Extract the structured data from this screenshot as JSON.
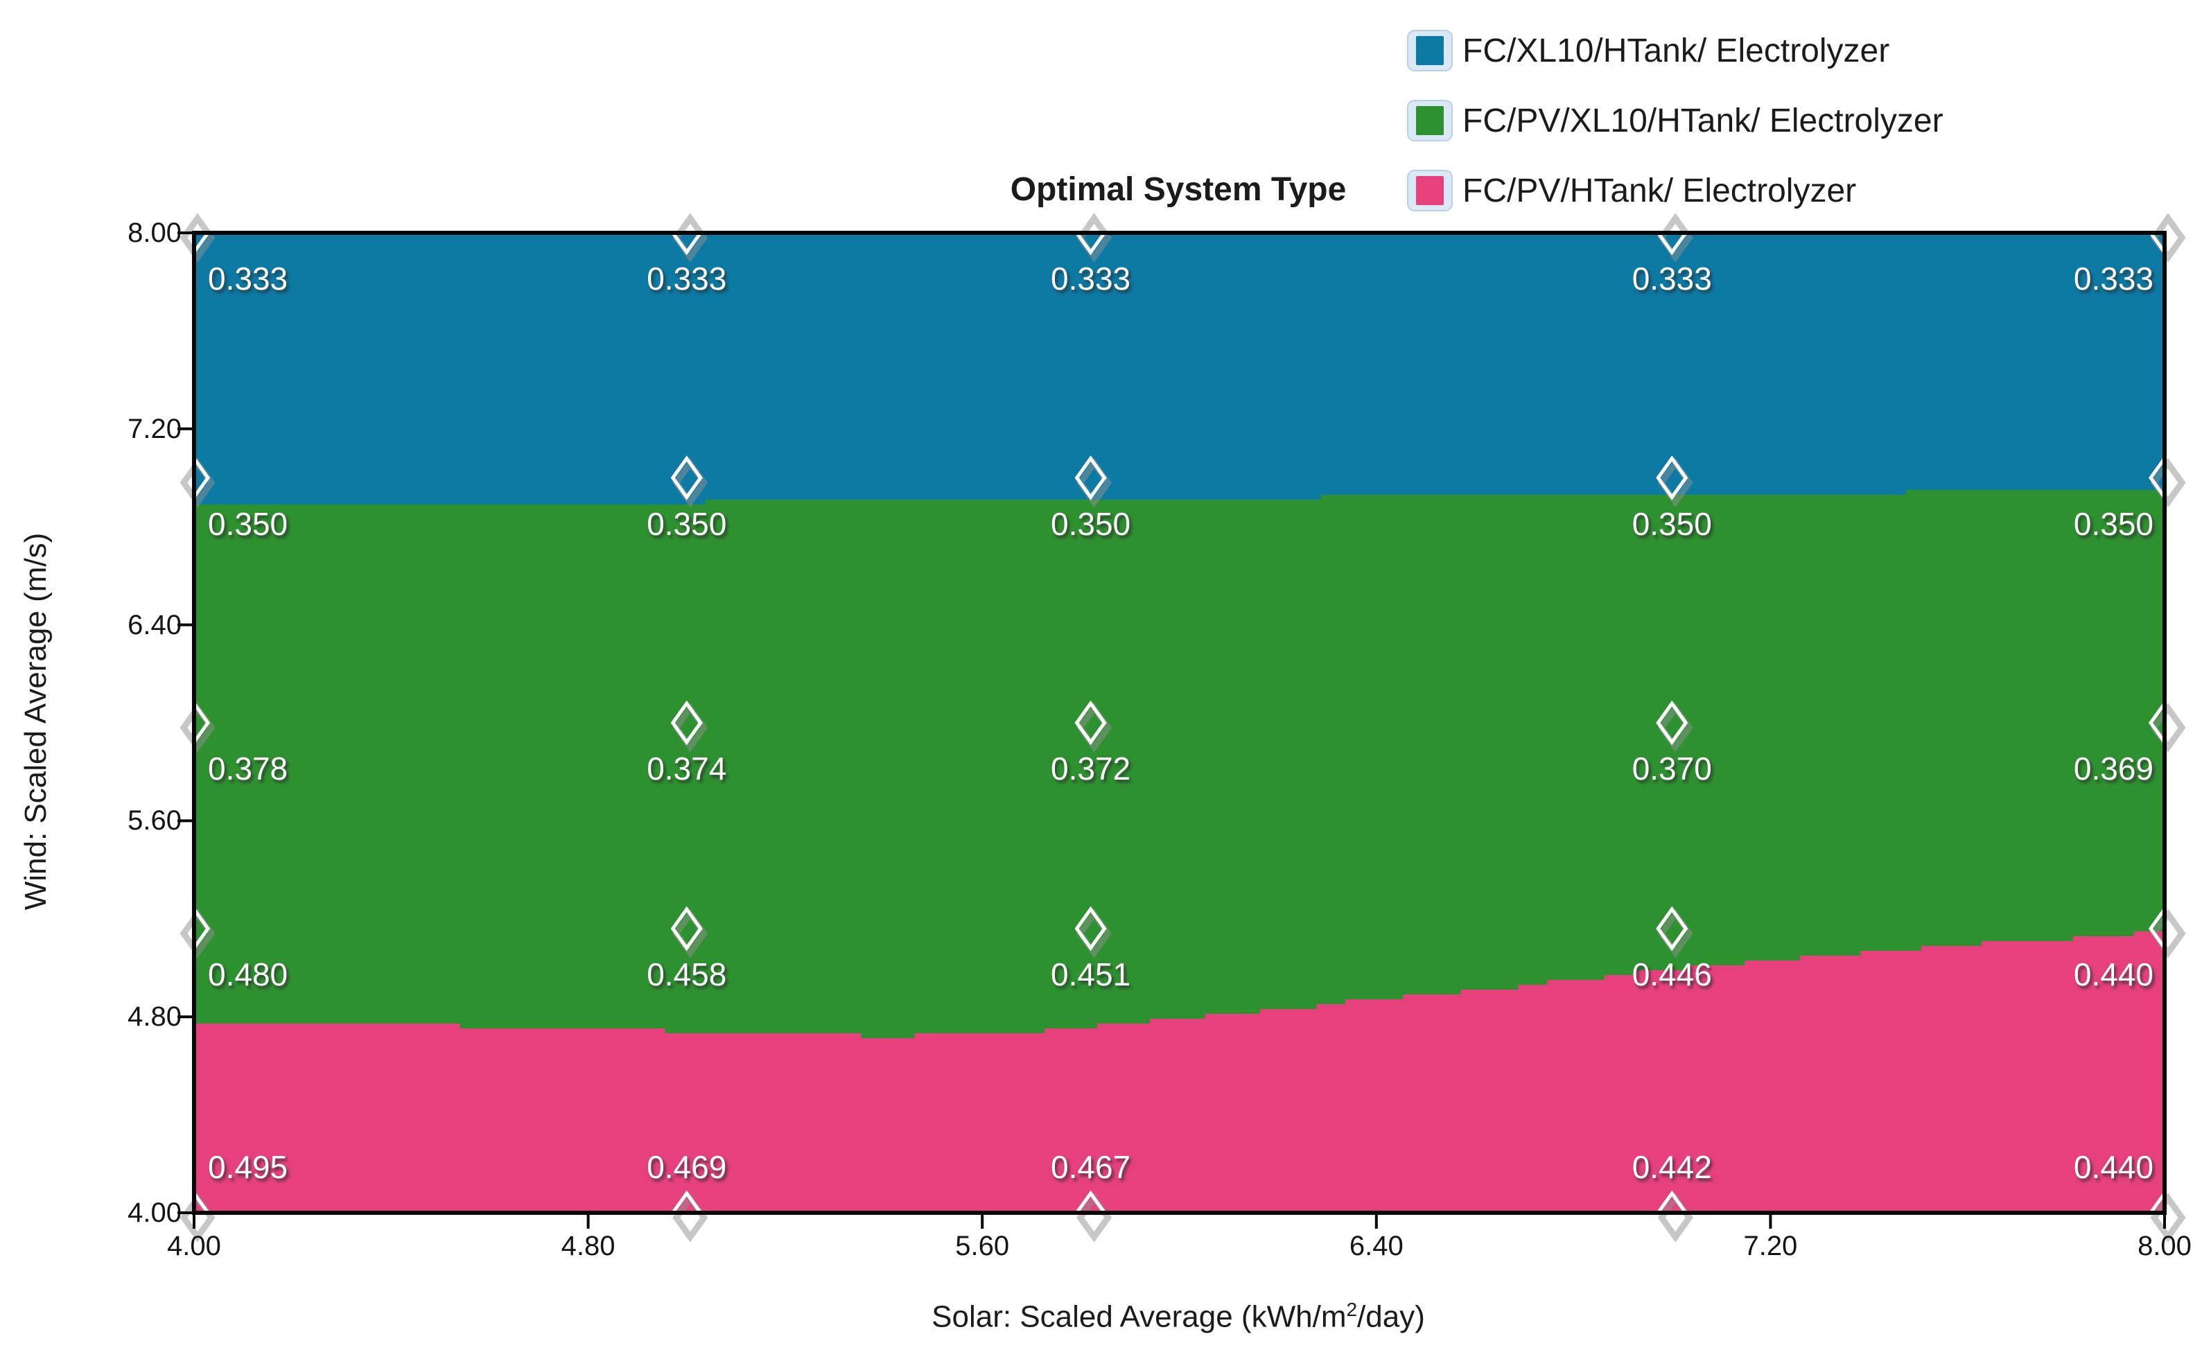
{
  "chart_data": {
    "type": "heatmap",
    "subtype": "optimal-system-type-region-map",
    "title": "Optimal System Type",
    "xlabel": "Solar: Scaled Average (kWh/m²/day)",
    "xlabel_parts": {
      "prefix": "Solar: Scaled Average (kWh/m",
      "sup": "2",
      "suffix": "/day)"
    },
    "ylabel": "Wind: Scaled Average (m/s)",
    "x_ticks": [
      "4.00",
      "4.80",
      "5.60",
      "6.40",
      "7.20",
      "8.00"
    ],
    "y_ticks": [
      "8.00",
      "7.20",
      "6.40",
      "5.60",
      "4.80",
      "4.00"
    ],
    "xlim": [
      4.0,
      8.0
    ],
    "ylim": [
      4.0,
      8.0
    ],
    "x_values": [
      4.0,
      5.0,
      5.82,
      7.0,
      8.0
    ],
    "y_values": [
      8.0,
      7.0,
      6.0,
      5.16,
      4.0
    ],
    "values": [
      [
        "0.333",
        "0.333",
        "0.333",
        "0.333",
        "0.333"
      ],
      [
        "0.350",
        "0.350",
        "0.350",
        "0.350",
        "0.350"
      ],
      [
        "0.378",
        "0.374",
        "0.372",
        "0.370",
        "0.369"
      ],
      [
        "0.480",
        "0.458",
        "0.451",
        "0.446",
        "0.440"
      ],
      [
        "0.495",
        "0.469",
        "0.467",
        "0.442",
        "0.440"
      ]
    ],
    "legend": [
      {
        "label": "FC/XL10/HTank/ Electrolyzer",
        "color": "#0d7aa4"
      },
      {
        "label": "FC/PV/XL10/HTank/ Electrolyzer",
        "color": "#2e9130"
      },
      {
        "label": "FC/PV/HTank/ Electrolyzer",
        "color": "#e7417d"
      }
    ],
    "legend_position": "top-right",
    "grid": false,
    "marker": "open-white-diamond",
    "region_boundaries": {
      "blue_green": [
        [
          4.0,
          6.888
        ],
        [
          4.6,
          6.895
        ],
        [
          5.1,
          6.902
        ],
        [
          5.6,
          6.91
        ],
        [
          6.1,
          6.918
        ],
        [
          6.6,
          6.928
        ],
        [
          7.1,
          6.936
        ],
        [
          7.6,
          6.943
        ],
        [
          8.0,
          6.948
        ]
      ],
      "green_pink": [
        [
          4.0,
          4.782
        ],
        [
          4.42,
          4.766
        ],
        [
          4.84,
          4.748
        ],
        [
          5.13,
          4.731
        ],
        [
          5.41,
          4.72
        ],
        [
          5.62,
          4.732
        ],
        [
          5.94,
          4.788
        ],
        [
          6.22,
          4.84
        ],
        [
          6.63,
          4.918
        ],
        [
          6.98,
          4.996
        ],
        [
          7.26,
          5.048
        ],
        [
          7.69,
          5.11
        ],
        [
          8.0,
          5.152
        ]
      ]
    }
  }
}
